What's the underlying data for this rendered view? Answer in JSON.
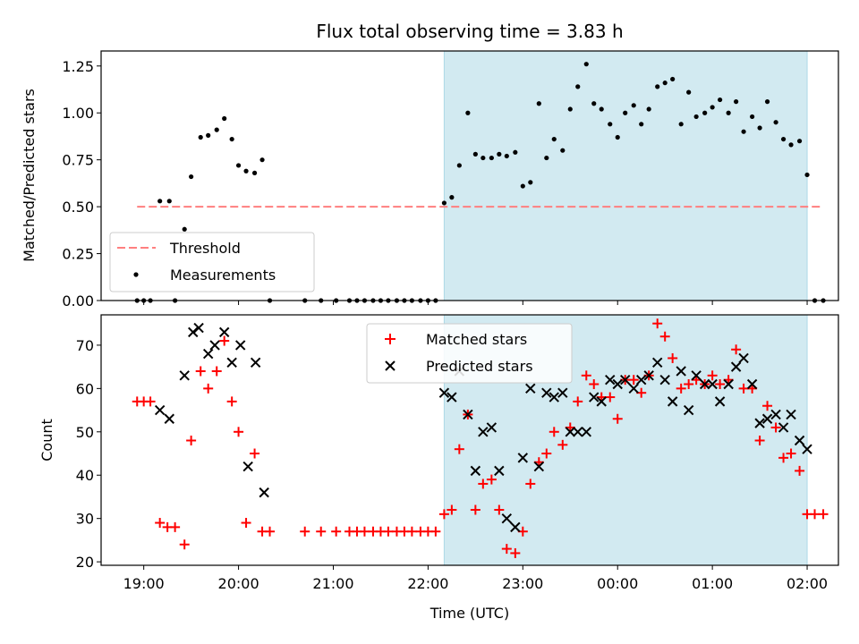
{
  "chart_data": {
    "title": "Flux total observing time = 3.83 h",
    "xlabel": "Time (UTC)",
    "x_ticks": [
      "19:00",
      "20:00",
      "21:00",
      "22:00",
      "23:00",
      "00:00",
      "01:00",
      "02:00"
    ],
    "x_tick_hours": [
      19,
      20,
      21,
      22,
      23,
      24,
      25,
      26
    ],
    "x_range": [
      18.55,
      26.33
    ],
    "shaded_interval": {
      "start": 22.17,
      "end": 26.0,
      "color": "#add8e6"
    },
    "panels": [
      {
        "type": "scatter",
        "ylabel": "Matched/Predicted stars",
        "ylim": [
          0,
          1.33
        ],
        "y_ticks": [
          0.0,
          0.25,
          0.5,
          0.75,
          1.0,
          1.25
        ],
        "y_tick_labels": [
          "0.00",
          "0.25",
          "0.50",
          "0.75",
          "1.00",
          "1.25"
        ],
        "legend_position": "lower-left",
        "threshold": {
          "name": "Threshold",
          "value": 0.5,
          "x_start": 18.93,
          "x_end": 26.17,
          "color": "#ff7f7f"
        },
        "series": [
          {
            "name": "Measurements",
            "marker": "dot",
            "color": "#000000",
            "points": [
              [
                18.93,
                0.0
              ],
              [
                19.0,
                0.0
              ],
              [
                19.07,
                0.0
              ],
              [
                19.17,
                0.53
              ],
              [
                19.27,
                0.53
              ],
              [
                19.33,
                0.0
              ],
              [
                19.43,
                0.38
              ],
              [
                19.5,
                0.66
              ],
              [
                19.6,
                0.87
              ],
              [
                19.68,
                0.88
              ],
              [
                19.77,
                0.91
              ],
              [
                19.85,
                0.97
              ],
              [
                19.93,
                0.86
              ],
              [
                20.0,
                0.72
              ],
              [
                20.08,
                0.69
              ],
              [
                20.17,
                0.68
              ],
              [
                20.25,
                0.75
              ],
              [
                20.33,
                0.0
              ],
              [
                20.7,
                0.0
              ],
              [
                20.87,
                0.0
              ],
              [
                21.03,
                0.0
              ],
              [
                21.17,
                0.0
              ],
              [
                21.25,
                0.0
              ],
              [
                21.33,
                0.0
              ],
              [
                21.42,
                0.0
              ],
              [
                21.5,
                0.0
              ],
              [
                21.58,
                0.0
              ],
              [
                21.67,
                0.0
              ],
              [
                21.75,
                0.0
              ],
              [
                21.83,
                0.0
              ],
              [
                21.92,
                0.0
              ],
              [
                22.0,
                0.0
              ],
              [
                22.08,
                0.0
              ],
              [
                22.17,
                0.52
              ],
              [
                22.25,
                0.55
              ],
              [
                22.33,
                0.72
              ],
              [
                22.42,
                1.0
              ],
              [
                22.5,
                0.78
              ],
              [
                22.58,
                0.76
              ],
              [
                22.67,
                0.76
              ],
              [
                22.75,
                0.78
              ],
              [
                22.83,
                0.77
              ],
              [
                22.92,
                0.79
              ],
              [
                23.0,
                0.61
              ],
              [
                23.08,
                0.63
              ],
              [
                23.17,
                1.05
              ],
              [
                23.25,
                0.76
              ],
              [
                23.33,
                0.86
              ],
              [
                23.42,
                0.8
              ],
              [
                23.5,
                1.02
              ],
              [
                23.58,
                1.14
              ],
              [
                23.67,
                1.26
              ],
              [
                23.75,
                1.05
              ],
              [
                23.83,
                1.02
              ],
              [
                23.92,
                0.94
              ],
              [
                24.0,
                0.87
              ],
              [
                24.08,
                1.0
              ],
              [
                24.17,
                1.04
              ],
              [
                24.25,
                0.94
              ],
              [
                24.33,
                1.02
              ],
              [
                24.42,
                1.14
              ],
              [
                24.5,
                1.16
              ],
              [
                24.58,
                1.18
              ],
              [
                24.67,
                0.94
              ],
              [
                24.75,
                1.11
              ],
              [
                24.83,
                0.98
              ],
              [
                24.92,
                1.0
              ],
              [
                25.0,
                1.03
              ],
              [
                25.08,
                1.07
              ],
              [
                25.17,
                1.0
              ],
              [
                25.25,
                1.06
              ],
              [
                25.33,
                0.9
              ],
              [
                25.42,
                0.98
              ],
              [
                25.5,
                0.92
              ],
              [
                25.58,
                1.06
              ],
              [
                25.67,
                0.95
              ],
              [
                25.75,
                0.86
              ],
              [
                25.83,
                0.83
              ],
              [
                25.92,
                0.85
              ],
              [
                26.0,
                0.67
              ],
              [
                26.08,
                0.0
              ],
              [
                26.17,
                0.0
              ]
            ]
          }
        ]
      },
      {
        "type": "scatter",
        "ylabel": "Count",
        "ylim": [
          19.2,
          77.0
        ],
        "y_ticks": [
          20,
          30,
          40,
          50,
          60,
          70
        ],
        "y_tick_labels": [
          "20",
          "30",
          "40",
          "50",
          "60",
          "70"
        ],
        "legend_position": "upper-center",
        "series": [
          {
            "name": "Matched stars",
            "marker": "plus",
            "color": "#ff0000",
            "points": [
              [
                18.93,
                57
              ],
              [
                19.0,
                57
              ],
              [
                19.07,
                57
              ],
              [
                19.17,
                29
              ],
              [
                19.25,
                28
              ],
              [
                19.33,
                28
              ],
              [
                19.43,
                24
              ],
              [
                19.5,
                48
              ],
              [
                19.6,
                64
              ],
              [
                19.68,
                60
              ],
              [
                19.77,
                64
              ],
              [
                19.85,
                71
              ],
              [
                19.93,
                57
              ],
              [
                20.0,
                50
              ],
              [
                20.08,
                29
              ],
              [
                20.17,
                45
              ],
              [
                20.25,
                27
              ],
              [
                20.33,
                27
              ],
              [
                20.7,
                27
              ],
              [
                20.87,
                27
              ],
              [
                21.03,
                27
              ],
              [
                21.17,
                27
              ],
              [
                21.25,
                27
              ],
              [
                21.33,
                27
              ],
              [
                21.42,
                27
              ],
              [
                21.5,
                27
              ],
              [
                21.58,
                27
              ],
              [
                21.67,
                27
              ],
              [
                21.75,
                27
              ],
              [
                21.83,
                27
              ],
              [
                21.92,
                27
              ],
              [
                22.0,
                27
              ],
              [
                22.08,
                27
              ],
              [
                22.17,
                31
              ],
              [
                22.25,
                32
              ],
              [
                22.33,
                46
              ],
              [
                22.42,
                54
              ],
              [
                22.5,
                32
              ],
              [
                22.58,
                38
              ],
              [
                22.67,
                39
              ],
              [
                22.75,
                32
              ],
              [
                22.83,
                23
              ],
              [
                22.92,
                22
              ],
              [
                23.0,
                27
              ],
              [
                23.08,
                38
              ],
              [
                23.17,
                43
              ],
              [
                23.25,
                45
              ],
              [
                23.33,
                50
              ],
              [
                23.42,
                47
              ],
              [
                23.5,
                51
              ],
              [
                23.58,
                57
              ],
              [
                23.67,
                63
              ],
              [
                23.75,
                61
              ],
              [
                23.83,
                58
              ],
              [
                23.92,
                58
              ],
              [
                24.0,
                53
              ],
              [
                24.08,
                62
              ],
              [
                24.17,
                62
              ],
              [
                24.25,
                59
              ],
              [
                24.33,
                63
              ],
              [
                24.42,
                75
              ],
              [
                24.5,
                72
              ],
              [
                24.58,
                67
              ],
              [
                24.67,
                60
              ],
              [
                24.75,
                61
              ],
              [
                24.83,
                62
              ],
              [
                24.92,
                61
              ],
              [
                25.0,
                63
              ],
              [
                25.08,
                61
              ],
              [
                25.17,
                62
              ],
              [
                25.25,
                69
              ],
              [
                25.33,
                60
              ],
              [
                25.42,
                60
              ],
              [
                25.5,
                48
              ],
              [
                25.58,
                56
              ],
              [
                25.67,
                51
              ],
              [
                25.75,
                44
              ],
              [
                25.83,
                45
              ],
              [
                25.92,
                41
              ],
              [
                26.0,
                31
              ],
              [
                26.08,
                31
              ],
              [
                26.17,
                31
              ]
            ]
          },
          {
            "name": "Predicted stars",
            "marker": "x",
            "color": "#000000",
            "points": [
              [
                19.17,
                55
              ],
              [
                19.27,
                53
              ],
              [
                19.43,
                63
              ],
              [
                19.52,
                73
              ],
              [
                19.58,
                74
              ],
              [
                19.68,
                68
              ],
              [
                19.75,
                70
              ],
              [
                19.85,
                73
              ],
              [
                19.93,
                66
              ],
              [
                20.02,
                70
              ],
              [
                20.1,
                42
              ],
              [
                20.18,
                66
              ],
              [
                20.27,
                36
              ],
              [
                22.17,
                59
              ],
              [
                22.25,
                58
              ],
              [
                22.33,
                64
              ],
              [
                22.42,
                54
              ],
              [
                22.5,
                41
              ],
              [
                22.58,
                50
              ],
              [
                22.67,
                51
              ],
              [
                22.75,
                41
              ],
              [
                22.83,
                30
              ],
              [
                22.92,
                28
              ],
              [
                23.0,
                44
              ],
              [
                23.08,
                60
              ],
              [
                23.17,
                42
              ],
              [
                23.25,
                59
              ],
              [
                23.33,
                58
              ],
              [
                23.42,
                59
              ],
              [
                23.5,
                50
              ],
              [
                23.58,
                50
              ],
              [
                23.67,
                50
              ],
              [
                23.75,
                58
              ],
              [
                23.83,
                57
              ],
              [
                23.92,
                62
              ],
              [
                24.0,
                61
              ],
              [
                24.08,
                62
              ],
              [
                24.17,
                60
              ],
              [
                24.25,
                62
              ],
              [
                24.33,
                63
              ],
              [
                24.42,
                66
              ],
              [
                24.5,
                62
              ],
              [
                24.58,
                57
              ],
              [
                24.67,
                64
              ],
              [
                24.75,
                55
              ],
              [
                24.83,
                63
              ],
              [
                24.92,
                61
              ],
              [
                25.0,
                61
              ],
              [
                25.08,
                57
              ],
              [
                25.17,
                61
              ],
              [
                25.25,
                65
              ],
              [
                25.33,
                67
              ],
              [
                25.42,
                61
              ],
              [
                25.5,
                52
              ],
              [
                25.58,
                53
              ],
              [
                25.67,
                54
              ],
              [
                25.75,
                51
              ],
              [
                25.83,
                54
              ],
              [
                25.92,
                48
              ],
              [
                26.0,
                46
              ]
            ]
          }
        ]
      }
    ]
  }
}
